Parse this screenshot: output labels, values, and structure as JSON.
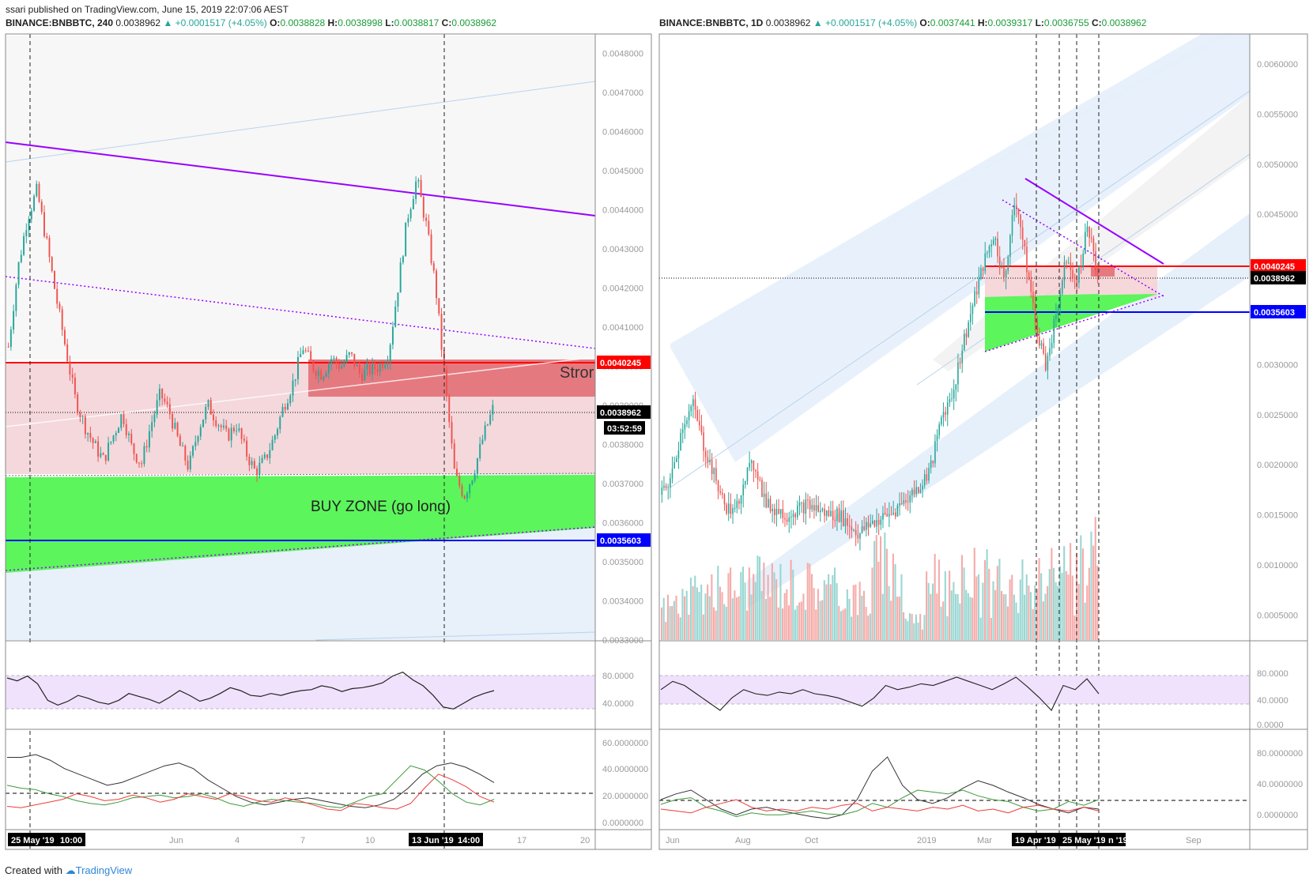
{
  "publish_line": "ssari published on TradingView.com, June 15, 2019 22:07:06 AEST",
  "left_header": {
    "symbol": "BINANCE:BNBBTC, 240",
    "last": "0.0038962",
    "change": "▲ +0.0001517 (+4.05%)",
    "o_label": "O:",
    "o": "0.0038828",
    "h_label": "H:",
    "h": "0.0038998",
    "l_label": "L:",
    "l": "0.0038817",
    "c_label": "C:",
    "c": "0.0038962"
  },
  "right_header": {
    "symbol": "BINANCE:BNBBTC, 1D",
    "last": "0.0038962",
    "change": "▲ +0.0001517 (+4.05%)",
    "o_label": "O:",
    "o": "0.0037441",
    "h_label": "H:",
    "h": "0.0039317",
    "l_label": "L:",
    "l": "0.0036755",
    "c_label": "C:",
    "c": "0.0038962"
  },
  "footer": {
    "created_with": "Created with",
    "brand": "TradingView"
  },
  "colors": {
    "up": "#26a69a",
    "down": "#ef5350",
    "resistance": "#ff0000",
    "support": "#0000ff",
    "trendline": "#9900ff",
    "buy_zone": "#44ff44",
    "resistance_zone": "#e06666",
    "rsi_band": "#e9ddfb",
    "channel": "#cfe2f3"
  },
  "chart_data": [
    {
      "type": "candlestick",
      "timeframe": "240",
      "symbol": "BINANCE:BNBBTC",
      "ylim": [
        0.0033,
        0.00485
      ],
      "y_ticks": [
        "0.0048000",
        "0.0047000",
        "0.0046000",
        "0.0045000",
        "0.0044000",
        "0.0043000",
        "0.0042000",
        "0.0041000",
        "0.0040000",
        "0.0039000",
        "0.0038000",
        "0.0037000",
        "0.0036000",
        "0.0035000",
        "0.0034000",
        "0.0033000"
      ],
      "x_ticks": [
        "25 May '19",
        "10:00",
        "Jun",
        "4",
        "7",
        "10",
        "13 Jun '19",
        "14:00",
        "17",
        "20"
      ],
      "price_labels": [
        {
          "label": "0.0040245",
          "kind": "resistance"
        },
        {
          "label": "0.0038962",
          "kind": "last"
        },
        {
          "label": "03:52:59",
          "kind": "countdown"
        },
        {
          "label": "0.0035603",
          "kind": "support"
        }
      ],
      "annotations": {
        "buy_zone": "BUY ZONE (go long)",
        "strong": "Stror"
      },
      "close_path": [
        0.00405,
        0.00425,
        0.00438,
        0.00445,
        0.00432,
        0.00418,
        0.00405,
        0.00392,
        0.00385,
        0.0038,
        0.00376,
        0.00382,
        0.00388,
        0.00379,
        0.00375,
        0.00385,
        0.00393,
        0.00388,
        0.0038,
        0.00374,
        0.00384,
        0.0039,
        0.00386,
        0.00382,
        0.00385,
        0.00378,
        0.00373,
        0.00376,
        0.00382,
        0.0039,
        0.00396,
        0.00405,
        0.004,
        0.00398,
        0.00402,
        0.004,
        0.00403,
        0.00398,
        0.00399,
        0.004,
        0.00403,
        0.0042,
        0.00438,
        0.00448,
        0.00436,
        0.0042,
        0.00395,
        0.00372,
        0.00367,
        0.00373,
        0.00382,
        0.00389
      ],
      "rsi": {
        "levels": [
          "80.0000",
          "40.0000"
        ],
        "values": [
          68,
          65,
          70,
          62,
          45,
          40,
          44,
          50,
          47,
          43,
          41,
          45,
          52,
          49,
          46,
          42,
          48,
          55,
          50,
          44,
          47,
          52,
          58,
          55,
          50,
          49,
          52,
          50,
          53,
          55,
          56,
          60,
          58,
          54,
          57,
          58,
          60,
          63,
          70,
          74,
          66,
          60,
          50,
          38,
          36,
          42,
          48,
          52,
          55
        ]
      },
      "dmi": {
        "levels": [
          "60.0000000",
          "40.0000000",
          "20.0000000",
          "0.0000000"
        ],
        "adx": [
          50,
          50,
          52,
          48,
          42,
          38,
          34,
          30,
          32,
          36,
          40,
          44,
          46,
          42,
          34,
          28,
          22,
          18,
          16,
          18,
          20,
          21,
          19,
          17,
          15,
          14,
          16,
          20,
          28,
          38,
          44,
          46,
          43,
          38,
          32
        ],
        "plus_di": [
          30,
          28,
          27,
          24,
          22,
          19,
          17,
          16,
          18,
          21,
          22,
          23,
          21,
          22,
          24,
          21,
          17,
          15,
          18,
          20,
          19,
          18,
          17,
          15,
          14,
          18,
          22,
          24,
          34,
          44,
          41,
          33,
          24,
          18,
          16,
          20
        ],
        "minus_di": [
          15,
          14,
          16,
          18,
          20,
          24,
          22,
          19,
          20,
          23,
          21,
          18,
          20,
          24,
          22,
          20,
          24,
          22,
          19,
          18,
          21,
          19,
          16,
          13,
          12,
          17,
          16,
          14,
          13,
          17,
          28,
          38,
          34,
          29,
          22,
          18
        ]
      }
    },
    {
      "type": "candlestick",
      "timeframe": "1D",
      "symbol": "BINANCE:BNBBTC",
      "ylim": [
        0.00025,
        0.0063
      ],
      "y_ticks": [
        "0.0060000",
        "0.0055000",
        "0.0050000",
        "0.0045000",
        "0.0040000",
        "0.0035000",
        "0.0030000",
        "0.0025000",
        "0.0020000",
        "0.0015000",
        "0.0010000",
        "0.0005000"
      ],
      "x_ticks": [
        "Jun",
        "Aug",
        "Oct",
        "2019",
        "Mar",
        "19 Apr '19",
        "25 May '19",
        "n '19",
        "Sep"
      ],
      "price_labels": [
        {
          "label": "0.0040245",
          "kind": "resistance"
        },
        {
          "label": "0.0038962",
          "kind": "last"
        },
        {
          "label": "0.0035603",
          "kind": "support"
        }
      ],
      "close_path": [
        0.0017,
        0.0019,
        0.0024,
        0.0026,
        0.0022,
        0.0019,
        0.0016,
        0.0015,
        0.0019,
        0.002,
        0.0016,
        0.00155,
        0.0015,
        0.00155,
        0.0016,
        0.00155,
        0.0015,
        0.0015,
        0.0014,
        0.0013,
        0.0014,
        0.00145,
        0.0015,
        0.0016,
        0.0017,
        0.0018,
        0.002,
        0.0025,
        0.0027,
        0.0032,
        0.0036,
        0.004,
        0.0043,
        0.0038,
        0.0047,
        0.0041,
        0.0034,
        0.003,
        0.0035,
        0.0041,
        0.0038,
        0.0044,
        0.0039
      ],
      "rsi": {
        "levels": [
          "80.0000",
          "40.0000",
          "0.0000"
        ],
        "values": [
          55,
          65,
          60,
          50,
          40,
          30,
          45,
          55,
          50,
          48,
          52,
          50,
          55,
          50,
          48,
          45,
          40,
          35,
          45,
          60,
          55,
          58,
          62,
          60,
          65,
          70,
          65,
          60,
          55,
          62,
          70,
          58,
          45,
          30,
          60,
          55,
          68,
          50
        ]
      },
      "dmi": {
        "levels": [
          "80.0000000",
          "40.0000000",
          "0.0000000"
        ],
        "adx": [
          30,
          36,
          40,
          30,
          20,
          14,
          20,
          22,
          18,
          15,
          12,
          10,
          14,
          30,
          60,
          75,
          45,
          30,
          26,
          32,
          42,
          50,
          45,
          38,
          32,
          25,
          20,
          16,
          22,
          20
        ],
        "plus_di": [
          25,
          30,
          32,
          22,
          18,
          12,
          16,
          14,
          14,
          16,
          18,
          15,
          14,
          18,
          26,
          22,
          32,
          40,
          38,
          36,
          40,
          34,
          30,
          28,
          22,
          18,
          20,
          28,
          24,
          30
        ],
        "minus_di": [
          20,
          18,
          16,
          22,
          26,
          30,
          22,
          18,
          20,
          18,
          22,
          20,
          24,
          26,
          18,
          22,
          20,
          18,
          22,
          20,
          24,
          18,
          20,
          16,
          22,
          24,
          20,
          18,
          22,
          18
        ]
      }
    }
  ]
}
